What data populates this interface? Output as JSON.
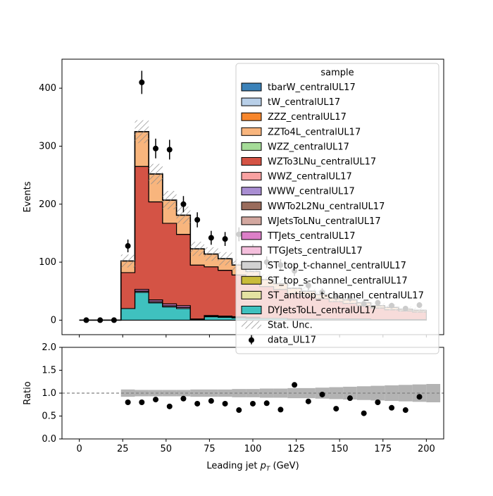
{
  "chart_data": [
    {
      "type": "area",
      "panel": "main",
      "ylabel": "Events",
      "xlim": [
        -10,
        210
      ],
      "ylim": [
        -25,
        450
      ],
      "yticks": [
        0,
        100,
        200,
        300,
        400
      ],
      "bin_edges": [
        0,
        8,
        16,
        24,
        32,
        40,
        48,
        56,
        64,
        72,
        80,
        88,
        96,
        104,
        112,
        120,
        128,
        136,
        144,
        152,
        160,
        168,
        176,
        184,
        192,
        200
      ],
      "series": [
        {
          "name": "DYJetsToLL_centralUL17",
          "color": "#3fc1bf",
          "values": [
            0,
            0,
            0,
            20,
            48,
            30,
            23,
            20,
            0,
            6,
            5,
            4,
            3,
            3,
            3,
            2,
            2,
            2,
            2,
            2,
            2,
            1,
            1,
            1,
            1
          ]
        },
        {
          "name": "ST_antitop_t-channel_centralUL17",
          "color": "#e4e2a2",
          "values": [
            0,
            0,
            0,
            0,
            0,
            0,
            0,
            0,
            0,
            0,
            0,
            0,
            0,
            0,
            0,
            0,
            0,
            0,
            0,
            0,
            0,
            0,
            0,
            0,
            0
          ]
        },
        {
          "name": "ST_top_s-channel_centralUL17",
          "color": "#c9bc3a",
          "values": [
            0,
            0,
            0,
            0,
            0,
            0,
            0,
            0,
            0,
            0,
            0,
            0,
            0,
            0,
            0,
            0,
            0,
            0,
            0,
            0,
            0,
            0,
            0,
            0,
            0
          ]
        },
        {
          "name": "ST_top_t-channel_centralUL17",
          "color": "#d2d2d2",
          "values": [
            0,
            0,
            0,
            0,
            0,
            0,
            0,
            0,
            0,
            0,
            0,
            0,
            0,
            0,
            0,
            0,
            0,
            0,
            0,
            0,
            0,
            0,
            0,
            0,
            0
          ]
        },
        {
          "name": "TTGJets_centralUL17",
          "color": "#f4bfdc",
          "values": [
            0,
            0,
            0,
            0,
            2,
            2,
            2,
            2,
            1,
            1,
            1,
            1,
            1,
            0,
            0,
            0,
            0,
            0,
            0,
            0,
            0,
            0,
            0,
            0,
            0
          ]
        },
        {
          "name": "TTJets_centralUL17",
          "color": "#dc7fc8",
          "values": [
            0,
            0,
            0,
            0,
            3,
            3,
            3,
            3,
            1,
            1,
            1,
            1,
            1,
            0,
            0,
            0,
            0,
            0,
            0,
            0,
            0,
            0,
            0,
            0,
            0
          ]
        },
        {
          "name": "WJetsToLNu_centralUL17",
          "color": "#d3a8a0",
          "values": [
            0,
            0,
            0,
            0,
            0,
            0,
            0,
            0,
            0,
            0,
            0,
            0,
            0,
            0,
            0,
            0,
            0,
            0,
            0,
            0,
            0,
            0,
            0,
            0,
            0
          ]
        },
        {
          "name": "WWTo2L2Nu_centralUL17",
          "color": "#9a6c5c",
          "values": [
            0,
            0,
            0,
            0,
            0,
            0,
            0,
            0,
            0,
            0,
            0,
            0,
            0,
            0,
            0,
            0,
            0,
            0,
            0,
            0,
            0,
            0,
            0,
            0,
            0
          ]
        },
        {
          "name": "WWW_centralUL17",
          "color": "#a98ed2",
          "values": [
            0,
            0,
            0,
            0,
            0,
            0,
            0,
            0,
            0,
            0,
            0,
            0,
            0,
            0,
            0,
            0,
            0,
            0,
            0,
            0,
            0,
            0,
            0,
            0,
            0
          ]
        },
        {
          "name": "WWZ_centralUL17",
          "color": "#f8a1a1",
          "values": [
            0,
            0,
            0,
            0,
            0,
            0,
            0,
            0,
            0,
            0,
            0,
            0,
            0,
            0,
            0,
            0,
            0,
            0,
            0,
            0,
            0,
            0,
            0,
            0,
            0
          ]
        },
        {
          "name": "WZTo3LNu_centralUL17",
          "color": "#d45345",
          "values": [
            0,
            0,
            0,
            62,
            212,
            169,
            139,
            123,
            93,
            84,
            79,
            72,
            65,
            55,
            50,
            44,
            40,
            35,
            30,
            27,
            23,
            20,
            17,
            15,
            13
          ]
        },
        {
          "name": "WZZ_centralUL17",
          "color": "#a5dc98",
          "values": [
            0,
            0,
            0,
            0,
            0,
            0,
            0,
            0,
            0,
            0,
            0,
            0,
            0,
            0,
            0,
            0,
            0,
            0,
            0,
            0,
            0,
            0,
            0,
            0,
            0
          ]
        },
        {
          "name": "ZZTo4L_centralUL17",
          "color": "#f8b57d",
          "values": [
            0,
            0,
            0,
            20,
            60,
            48,
            40,
            33,
            28,
            22,
            20,
            17,
            14,
            12,
            10,
            9,
            8,
            7,
            6,
            6,
            5,
            4,
            4,
            3,
            3
          ]
        },
        {
          "name": "ZZZ_centralUL17",
          "color": "#f7862c",
          "values": [
            0,
            0,
            0,
            0,
            0,
            0,
            0,
            0,
            0,
            0,
            0,
            0,
            0,
            0,
            0,
            0,
            0,
            0,
            0,
            0,
            0,
            0,
            0,
            0,
            0
          ]
        },
        {
          "name": "tW_centralUL17",
          "color": "#b8cfe8",
          "values": [
            0,
            0,
            0,
            0,
            0,
            0,
            0,
            0,
            0,
            0,
            0,
            0,
            0,
            0,
            0,
            0,
            0,
            0,
            0,
            0,
            0,
            0,
            0,
            0,
            0
          ]
        },
        {
          "name": "tbarW_centralUL17",
          "color": "#3b82b9",
          "values": [
            0,
            0,
            0,
            0,
            0,
            0,
            0,
            0,
            0,
            0,
            0,
            0,
            0,
            0,
            0,
            0,
            0,
            0,
            0,
            0,
            0,
            0,
            0,
            0,
            0
          ]
        }
      ],
      "stat_unc_label": "Stat. Unc.",
      "data": {
        "name": "data_UL17",
        "x": [
          4,
          12,
          20,
          28,
          36,
          44,
          52,
          60,
          68,
          76,
          84,
          92,
          100,
          108,
          116,
          124,
          132,
          140,
          148,
          156,
          164,
          172,
          180,
          188,
          196
        ],
        "y": [
          0,
          0,
          0,
          128,
          410,
          296,
          294,
          200,
          173,
          142,
          140,
          148,
          120,
          100,
          95,
          85,
          60,
          48,
          40,
          38,
          28,
          30,
          25,
          20,
          26
        ],
        "err": [
          0,
          0,
          0,
          11,
          20,
          17,
          17,
          14,
          13,
          12,
          12,
          12,
          11,
          10,
          10,
          9,
          8,
          7,
          6,
          6,
          5,
          5,
          5,
          4,
          5
        ]
      },
      "legend": {
        "title": "sample",
        "location": "upper right"
      }
    },
    {
      "type": "scatter",
      "panel": "ratio",
      "xlabel": "Leading jet  $p_T$ (GeV)",
      "ylabel": "Ratio",
      "xlim": [
        -10,
        210
      ],
      "ylim": [
        0,
        2
      ],
      "xticks": [
        0,
        25,
        50,
        75,
        100,
        125,
        150,
        175,
        200
      ],
      "yticks": [
        0.0,
        0.5,
        1.0,
        1.5,
        2.0
      ],
      "reference_line": 1.0,
      "band_bins": [
        24,
        200
      ],
      "band_halfwidth": [
        0.08,
        0.07,
        0.07,
        0.07,
        0.07,
        0.08,
        0.08,
        0.08,
        0.09,
        0.09,
        0.1,
        0.1,
        0.11,
        0.11,
        0.12,
        0.13,
        0.14,
        0.15,
        0.16,
        0.17,
        0.18,
        0.19,
        0.2
      ],
      "x": [
        28,
        36,
        44,
        52,
        60,
        68,
        76,
        84,
        92,
        100,
        108,
        116,
        124,
        132,
        140,
        148,
        156,
        164,
        172,
        180,
        188,
        196
      ],
      "y": [
        0.8,
        0.8,
        0.86,
        0.71,
        0.88,
        0.77,
        0.83,
        0.77,
        0.63,
        0.77,
        0.78,
        0.64,
        1.18,
        0.82,
        0.97,
        0.66,
        0.89,
        0.56,
        0.8,
        0.68,
        0.63,
        0.92
      ],
      "err": [
        0.03,
        0.02,
        0.03,
        0.03,
        0.03,
        0.03,
        0.03,
        0.03,
        0.03,
        0.03,
        0.03,
        0.03,
        0.05,
        0.04,
        0.05,
        0.04,
        0.04,
        0.04,
        0.06,
        0.04,
        0.04,
        0.05
      ]
    }
  ]
}
